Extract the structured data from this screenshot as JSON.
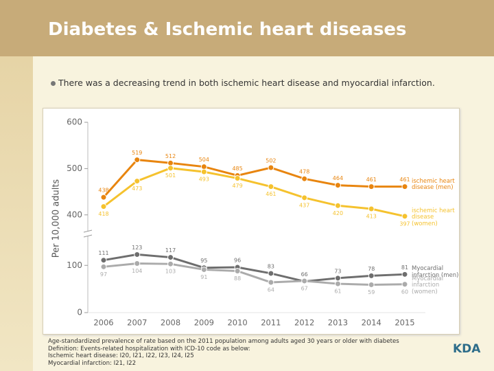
{
  "title": "Diabetes & Ischemic heart diseases",
  "bullet": "There was a decreasing trend in both ischemic heart disease and myocardial infarction.",
  "chart_data": {
    "type": "line",
    "y_label": "Per 10,000 adults",
    "categories": [
      "2006",
      "2007",
      "2008",
      "2009",
      "2010",
      "2011",
      "2012",
      "2013",
      "2014",
      "2015"
    ],
    "ylim": [
      0,
      600
    ],
    "ybreak": [
      160,
      367
    ],
    "yticks": [
      0,
      100,
      400,
      500,
      600
    ],
    "series": [
      {
        "name": "ischemic heart disease (men)",
        "color": "#e8850f",
        "values": [
          438,
          519,
          512,
          504,
          485,
          502,
          478,
          464,
          461,
          461
        ]
      },
      {
        "name": "ischemic heart disease (women)",
        "color": "#f5c22e",
        "values": [
          418,
          473,
          501,
          493,
          479,
          461,
          437,
          420,
          413,
          397
        ]
      },
      {
        "name": "Myocardial infarction (men)",
        "color": "#6e6e6e",
        "values": [
          111,
          123,
          117,
          95,
          96,
          83,
          66,
          73,
          78,
          81
        ]
      },
      {
        "name": "Myocardial infarction (women)",
        "color": "#ababab",
        "values": [
          97,
          104,
          103,
          91,
          88,
          64,
          67,
          61,
          59,
          60
        ]
      }
    ]
  },
  "notes": [
    "Age-standardized prevalence of rate based on the 2011 population among adults aged 30 years or older with diabetes",
    "Definition: Events-related hospitalization with ICD-10 code as below:",
    "Ischemic heart disease: I20, I21, I22, I23, I24, I25",
    "Myocardial infarction: I21, I22"
  ],
  "logo": "KDA"
}
